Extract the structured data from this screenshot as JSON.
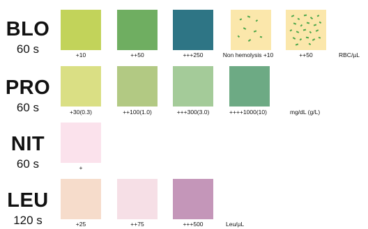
{
  "rows": [
    {
      "analyte": "BLO",
      "time": "60 s",
      "colors": [
        "#c2d35a",
        "#6fae61",
        "#2e7585",
        "#fbe7ab",
        "#fbe7ab"
      ],
      "labels": [
        "+10",
        "++50",
        "+++250",
        "Non hemolysis +10",
        "++50"
      ],
      "unit": "RBC/µL"
    },
    {
      "analyte": "PRO",
      "time": "60 s",
      "colors": [
        "#dadf84",
        "#b2c983",
        "#a4cb99",
        "#6daa84"
      ],
      "labels": [
        "+30(0.3)",
        "++100(1.0)",
        "+++300(3.0)",
        "++++1000(10)"
      ],
      "unit": "mg/dL (g/L)"
    },
    {
      "analyte": "NIT",
      "time": "60 s",
      "colors": [
        "#fbe2ec"
      ],
      "labels": [
        "+"
      ],
      "unit": ""
    },
    {
      "analyte": "LEU",
      "time": "120 s",
      "colors": [
        "#f6dccb",
        "#f6dfe6",
        "#c496b9"
      ],
      "labels": [
        "+25",
        "++75",
        "+++500"
      ],
      "unit": "Leu/µL"
    }
  ],
  "dot_color": "#4aa64a"
}
